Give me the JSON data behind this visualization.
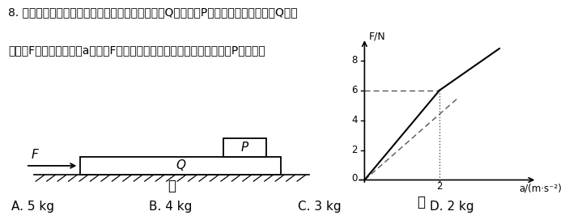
{
  "title_line1": "8. 如图甲所示，光滑水平面上静置一足够长的木板Q，小滑块P放置于其上表面，木板Q在水",
  "title_line2": "平拉力F作用下，加速度a随拉力F变化的关系图像如图乙所示，则小滑块P的质量为",
  "choices": [
    "A. 5 kg",
    "B. 4 kg",
    "C. 3 kg",
    "D. 2 kg"
  ],
  "graph_ylabel": "F/N",
  "graph_xlabel": "a/(m·s⁻²)",
  "graph_label_jia": "甲",
  "graph_label_yi": "乙",
  "yticks": [
    0,
    2,
    4,
    6,
    8
  ],
  "xtick_val": 2,
  "bg_color": "#ffffff"
}
